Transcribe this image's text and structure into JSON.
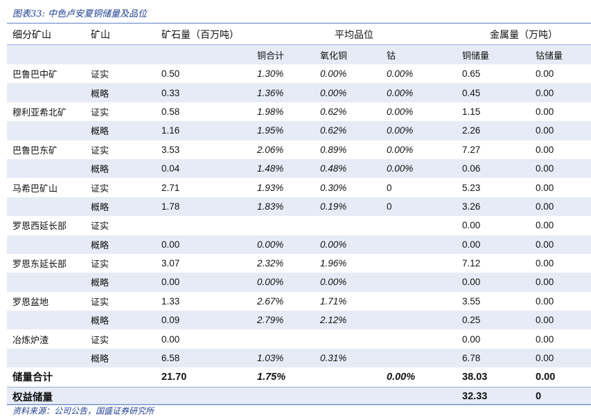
{
  "title": "图表33:  中色卢安夏铜储量及品位",
  "source": "资料来源：公司公告，国盛证券研究所",
  "header": {
    "col_mine_area": "细分矿山",
    "col_mine": "矿山",
    "col_ore": "矿石量（百万吨）",
    "col_grade": "平均品位",
    "col_metal": "金属量（万吨）",
    "sub_cu_total": "铜合计",
    "sub_cu_oxide": "氧化铜",
    "sub_co": "钴",
    "sub_cu_reserve": "铜储量",
    "sub_co_reserve": "钴储量"
  },
  "rows": [
    {
      "area": "巴鲁巴中矿",
      "cls": "证实",
      "ore": "0.50",
      "cu": "1.30%",
      "oxide": "0.00%",
      "co": "0.00%",
      "cu_res": "0.65",
      "co_res": "0.00"
    },
    {
      "area": "",
      "cls": "概略",
      "ore": "0.33",
      "cu": "1.36%",
      "oxide": "0.00%",
      "co": "0.00%",
      "cu_res": "0.45",
      "co_res": "0.00"
    },
    {
      "area": "穆利亚希北矿",
      "cls": "证实",
      "ore": "0.58",
      "cu": "1.98%",
      "oxide": "0.62%",
      "co": "0.00%",
      "cu_res": "1.15",
      "co_res": "0.00"
    },
    {
      "area": "",
      "cls": "概略",
      "ore": "1.16",
      "cu": "1.95%",
      "oxide": "0.62%",
      "co": "0.00%",
      "cu_res": "2.26",
      "co_res": "0.00"
    },
    {
      "area": "巴鲁巴东矿",
      "cls": "证实",
      "ore": "3.53",
      "cu": "2.06%",
      "oxide": "0.89%",
      "co": "0.00%",
      "cu_res": "7.27",
      "co_res": "0.00"
    },
    {
      "area": "",
      "cls": "概略",
      "ore": "0.04",
      "cu": "1.48%",
      "oxide": "0.48%",
      "co": "0.00%",
      "cu_res": "0.06",
      "co_res": "0.00"
    },
    {
      "area": "马希巴矿山",
      "cls": "证实",
      "ore": "2.71",
      "cu": "1.93%",
      "oxide": "0.30%",
      "co": "0",
      "cu_res": "5.23",
      "co_res": "0.00"
    },
    {
      "area": "",
      "cls": "概略",
      "ore": "1.78",
      "cu": "1.83%",
      "oxide": "0.19%",
      "co": "0",
      "cu_res": "3.26",
      "co_res": "0.00"
    },
    {
      "area": "罗恩西延长部",
      "cls": "证实",
      "ore": "",
      "cu": "",
      "oxide": "",
      "co": "",
      "cu_res": "0.00",
      "co_res": "0.00"
    },
    {
      "area": "",
      "cls": "概略",
      "ore": "0.00",
      "cu": "0.00%",
      "oxide": "0.00%",
      "co": "",
      "cu_res": "0.00",
      "co_res": "0.00"
    },
    {
      "area": "罗恩东延长部",
      "cls": "证实",
      "ore": "3.07",
      "cu": "2.32%",
      "oxide": "1.96%",
      "co": "",
      "cu_res": "7.12",
      "co_res": "0.00"
    },
    {
      "area": "",
      "cls": "概略",
      "ore": "0.00",
      "cu": "0.00%",
      "oxide": "0.00%",
      "co": "",
      "cu_res": "0.00",
      "co_res": "0.00"
    },
    {
      "area": "罗恩盆地",
      "cls": "证实",
      "ore": "1.33",
      "cu": "2.67%",
      "oxide": "1.71%",
      "co": "",
      "cu_res": "3.55",
      "co_res": "0.00"
    },
    {
      "area": "",
      "cls": "概略",
      "ore": "0.09",
      "cu": "2.79%",
      "oxide": "2.12%",
      "co": "",
      "cu_res": "0.25",
      "co_res": "0.00"
    },
    {
      "area": "冶炼炉渣",
      "cls": "证实",
      "ore": "0.00",
      "cu": "",
      "oxide": "",
      "co": "",
      "cu_res": "0.00",
      "co_res": "0.00"
    },
    {
      "area": "",
      "cls": "概略",
      "ore": "6.58",
      "cu": "1.03%",
      "oxide": "0.31%",
      "co": "",
      "cu_res": "6.78",
      "co_res": "0.00"
    }
  ],
  "total": {
    "label": "储量合计",
    "ore": "21.70",
    "cu": "1.75%",
    "co": "0.00%",
    "cu_res": "38.03",
    "co_res": "0.00"
  },
  "equity": {
    "label": "权益储量",
    "cu_res": "32.33",
    "co_res": "0"
  },
  "colors": {
    "accent": "#5b7fc2",
    "title": "#1f3f8f",
    "shade": "#e6ebf5"
  }
}
